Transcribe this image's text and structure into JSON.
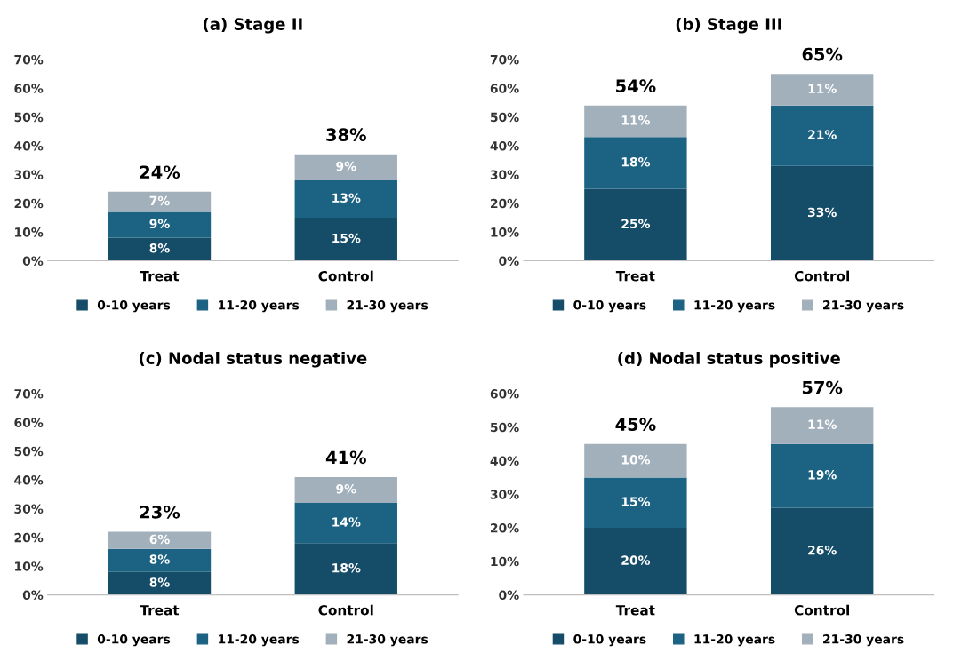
{
  "chart_data": [
    {
      "type": "bar",
      "title": "(a) Stage II",
      "stacked": true,
      "categories": [
        "Treat",
        "Control"
      ],
      "legend": "bottom",
      "grid": false,
      "ylim": [
        0,
        70
      ],
      "yticks": [
        {
          "value": 0,
          "label": "0%"
        },
        {
          "value": 10,
          "label": "10%"
        },
        {
          "value": 20,
          "label": "20%"
        },
        {
          "value": 30,
          "label": "30%"
        },
        {
          "value": 40,
          "label": "40%"
        },
        {
          "value": 50,
          "label": "50%"
        },
        {
          "value": 60,
          "label": "60%"
        },
        {
          "value": 70,
          "label": "70%"
        }
      ],
      "series": [
        {
          "name": "0-10 years",
          "color": "#154c68",
          "values": [
            8,
            15
          ],
          "value_labels": [
            "8%",
            "15%"
          ]
        },
        {
          "name": "11-20 years",
          "color": "#1b6283",
          "values": [
            9,
            13
          ],
          "value_labels": [
            "9%",
            "13%"
          ]
        },
        {
          "name": "21-30 years",
          "color": "#a2b0bc",
          "values": [
            7,
            9
          ],
          "value_labels": [
            "7%",
            "9%"
          ]
        }
      ],
      "totals": [
        "24%",
        "38%"
      ]
    },
    {
      "type": "bar",
      "title": "(b) Stage III",
      "stacked": true,
      "categories": [
        "Treat",
        "Control"
      ],
      "legend": "bottom",
      "grid": false,
      "ylim": [
        0,
        70
      ],
      "yticks": [
        {
          "value": 0,
          "label": "0%"
        },
        {
          "value": 10,
          "label": "10%"
        },
        {
          "value": 20,
          "label": "20%"
        },
        {
          "value": 30,
          "label": "30%"
        },
        {
          "value": 40,
          "label": "40%"
        },
        {
          "value": 50,
          "label": "50%"
        },
        {
          "value": 60,
          "label": "60%"
        },
        {
          "value": 70,
          "label": "70%"
        }
      ],
      "series": [
        {
          "name": "0-10 years",
          "color": "#154c68",
          "values": [
            25,
            33
          ],
          "value_labels": [
            "25%",
            "33%"
          ]
        },
        {
          "name": "11-20 years",
          "color": "#1b6283",
          "values": [
            18,
            21
          ],
          "value_labels": [
            "18%",
            "21%"
          ]
        },
        {
          "name": "21-30 years",
          "color": "#a2b0bc",
          "values": [
            11,
            11
          ],
          "value_labels": [
            "11%",
            "11%"
          ]
        }
      ],
      "totals": [
        "54%",
        "65%"
      ]
    },
    {
      "type": "bar",
      "title": "(c) Nodal status negative",
      "stacked": true,
      "categories": [
        "Treat",
        "Control"
      ],
      "legend": "bottom",
      "grid": false,
      "ylim": [
        0,
        70
      ],
      "yticks": [
        {
          "value": 0,
          "label": "0%"
        },
        {
          "value": 10,
          "label": "10%"
        },
        {
          "value": 20,
          "label": "20%"
        },
        {
          "value": 30,
          "label": "30%"
        },
        {
          "value": 40,
          "label": "40%"
        },
        {
          "value": 50,
          "label": "50%"
        },
        {
          "value": 60,
          "label": "60%"
        },
        {
          "value": 70,
          "label": "70%"
        }
      ],
      "series": [
        {
          "name": "0-10 years",
          "color": "#154c68",
          "values": [
            8,
            18
          ],
          "value_labels": [
            "8%",
            "18%"
          ]
        },
        {
          "name": "11-20 years",
          "color": "#1b6283",
          "values": [
            8,
            14
          ],
          "value_labels": [
            "8%",
            "14%"
          ]
        },
        {
          "name": "21-30 years",
          "color": "#a2b0bc",
          "values": [
            6,
            9
          ],
          "value_labels": [
            "6%",
            "9%"
          ]
        }
      ],
      "totals": [
        "23%",
        "41%"
      ]
    },
    {
      "type": "bar",
      "title": "(d) Nodal status positive",
      "stacked": true,
      "categories": [
        "Treat",
        "Control"
      ],
      "legend": "bottom",
      "grid": false,
      "ylim": [
        0,
        60
      ],
      "yticks": [
        {
          "value": 0,
          "label": "0%"
        },
        {
          "value": 10,
          "label": "10%"
        },
        {
          "value": 20,
          "label": "20%"
        },
        {
          "value": 30,
          "label": "30%"
        },
        {
          "value": 40,
          "label": "40%"
        },
        {
          "value": 50,
          "label": "50%"
        },
        {
          "value": 60,
          "label": "60%"
        }
      ],
      "series": [
        {
          "name": "0-10 years",
          "color": "#154c68",
          "values": [
            20,
            26
          ],
          "value_labels": [
            "20%",
            "26%"
          ]
        },
        {
          "name": "11-20 years",
          "color": "#1b6283",
          "values": [
            15,
            19
          ],
          "value_labels": [
            "15%",
            "19%"
          ]
        },
        {
          "name": "21-30 years",
          "color": "#a2b0bc",
          "values": [
            10,
            11
          ],
          "value_labels": [
            "10%",
            "11%"
          ]
        }
      ],
      "totals": [
        "45%",
        "57%"
      ]
    }
  ]
}
